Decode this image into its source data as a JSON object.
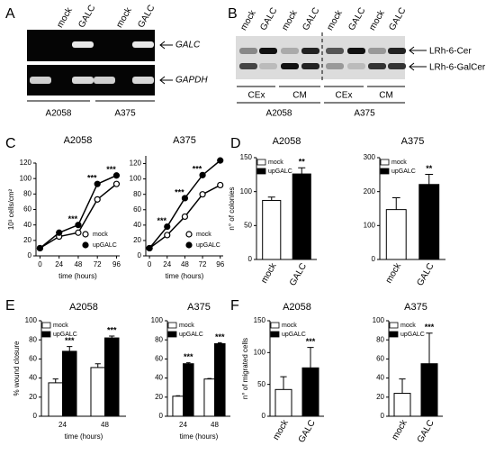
{
  "gel_a": {
    "letter": "A",
    "lanes": [
      "mock",
      "GALC",
      "mock",
      "GALC"
    ],
    "bands": [
      "GALC",
      "GAPDH"
    ],
    "cell_lines": [
      "A2058",
      "A375"
    ]
  },
  "gel_b": {
    "letter": "B",
    "lanes": [
      "mock",
      "GALC",
      "mock",
      "GALC",
      "mock",
      "GALC",
      "mock",
      "GALC"
    ],
    "bands": [
      "LRh-6-Cer",
      "LRh-6-GalCer"
    ],
    "fractions": [
      "CEx",
      "CM",
      "CEx",
      "CM"
    ],
    "cell_lines": [
      "A2058",
      "A375"
    ]
  },
  "panel_letters": [
    "C",
    "D",
    "E",
    "F"
  ],
  "chart_data": [
    {
      "type": "line",
      "title": "A2058",
      "x": [
        0,
        24,
        48,
        72,
        96
      ],
      "xlim": [
        -5,
        100
      ],
      "xticks": [
        0,
        24,
        48,
        72,
        96
      ],
      "ylim": [
        0,
        120
      ],
      "yticks": [
        0,
        20,
        40,
        60,
        80,
        100,
        120
      ],
      "xlabel": "time (hours)",
      "ylabel": "10³ cells/cm²",
      "series": [
        {
          "name": "mock",
          "color": "#ffffff",
          "values": [
            10,
            25,
            30,
            73,
            93
          ]
        },
        {
          "name": "upGALC",
          "color": "#000000",
          "values": [
            10,
            30,
            40,
            93,
            104
          ]
        }
      ],
      "annotations": [
        null,
        null,
        "***",
        "***",
        "***"
      ]
    },
    {
      "type": "line",
      "title": "A375",
      "x": [
        0,
        24,
        48,
        72,
        96
      ],
      "xlim": [
        -5,
        100
      ],
      "xticks": [
        0,
        24,
        48,
        72,
        96
      ],
      "ylim": [
        0,
        130
      ],
      "yticks": [
        0,
        20,
        40,
        60,
        80,
        100,
        120
      ],
      "xlabel": "time (hours)",
      "series": [
        {
          "name": "mock",
          "color": "#ffffff",
          "values": [
            10,
            27,
            51,
            80,
            92
          ]
        },
        {
          "name": "upGALC",
          "color": "#000000",
          "values": [
            10,
            38,
            75,
            105,
            124
          ]
        }
      ],
      "annotations": [
        null,
        "***",
        "***",
        "***",
        null
      ]
    },
    {
      "type": "bar",
      "title": "A2058",
      "categories": [
        "mock",
        "GALC"
      ],
      "ylim": [
        0,
        150
      ],
      "yticks": [
        0,
        50,
        100,
        150
      ],
      "ylabel": "n° of colonies",
      "series": [
        {
          "name": "mock",
          "color": "#ffffff",
          "values": [
            87,
            null
          ],
          "errors": [
            5,
            null
          ]
        },
        {
          "name": "upGALC",
          "color": "#000000",
          "values": [
            null,
            126
          ],
          "errors": [
            null,
            9
          ]
        }
      ],
      "annotations": [
        null,
        "**"
      ]
    },
    {
      "type": "bar",
      "title": "A375",
      "categories": [
        "mock",
        "GALC"
      ],
      "ylim": [
        0,
        300
      ],
      "yticks": [
        0,
        100,
        200,
        300
      ],
      "series": [
        {
          "name": "mock",
          "color": "#ffffff",
          "values": [
            147,
            null
          ],
          "errors": [
            35,
            null
          ]
        },
        {
          "name": "upGALC",
          "color": "#000000",
          "values": [
            null,
            221
          ],
          "errors": [
            null,
            30
          ]
        }
      ],
      "annotations": [
        null,
        "**"
      ]
    },
    {
      "type": "bar",
      "title": "A2058",
      "categories": [
        "24",
        "48"
      ],
      "ylim": [
        0,
        100
      ],
      "yticks": [
        0,
        20,
        40,
        60,
        80,
        100
      ],
      "ylabel": "% wound closure",
      "xlabel": "time (hours)",
      "series": [
        {
          "name": "mock",
          "color": "#ffffff",
          "values": [
            35,
            51
          ],
          "errors": [
            4,
            4
          ]
        },
        {
          "name": "upGALC",
          "color": "#000000",
          "values": [
            68,
            82
          ],
          "errors": [
            5,
            2
          ]
        }
      ],
      "annotations": [
        "***",
        "***"
      ]
    },
    {
      "type": "bar",
      "title": "A375",
      "categories": [
        "24",
        "48"
      ],
      "ylim": [
        0,
        100
      ],
      "yticks": [
        0,
        20,
        40,
        60,
        80,
        100
      ],
      "xlabel": "time (hours)",
      "series": [
        {
          "name": "mock",
          "color": "#ffffff",
          "values": [
            21,
            39
          ],
          "errors": [
            0.5,
            0.5
          ]
        },
        {
          "name": "upGALC",
          "color": "#000000",
          "values": [
            55,
            76
          ],
          "errors": [
            1,
            1
          ]
        }
      ],
      "annotations": [
        "***",
        "***"
      ]
    },
    {
      "type": "bar",
      "title": "A2058",
      "categories": [
        "mock",
        "GALC"
      ],
      "ylim": [
        0,
        150
      ],
      "yticks": [
        0,
        50,
        100,
        150
      ],
      "ylabel": "n° of migrated cells",
      "series": [
        {
          "name": "mock",
          "color": "#ffffff",
          "values": [
            42,
            null
          ],
          "errors": [
            20,
            null
          ]
        },
        {
          "name": "upGALC",
          "color": "#000000",
          "values": [
            null,
            76
          ],
          "errors": [
            null,
            32
          ]
        }
      ],
      "annotations": [
        null,
        "***"
      ]
    },
    {
      "type": "bar",
      "title": "A375",
      "categories": [
        "mock",
        "GALC"
      ],
      "ylim": [
        0,
        100
      ],
      "yticks": [
        0,
        20,
        40,
        60,
        80,
        100
      ],
      "series": [
        {
          "name": "mock",
          "color": "#ffffff",
          "values": [
            24,
            null
          ],
          "errors": [
            15,
            null
          ]
        },
        {
          "name": "upGALC",
          "color": "#000000",
          "values": [
            null,
            55
          ],
          "errors": [
            null,
            32
          ]
        }
      ],
      "annotations": [
        null,
        "***"
      ]
    }
  ]
}
